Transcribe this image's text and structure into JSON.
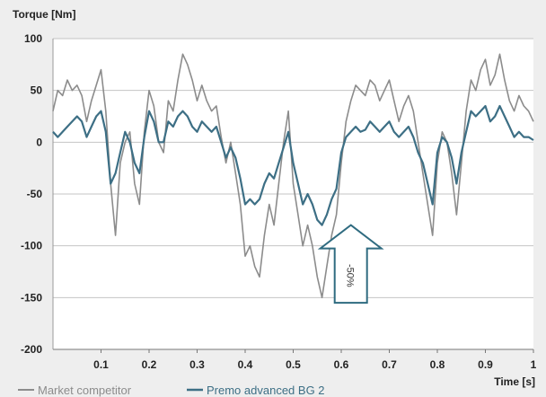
{
  "chart_data": {
    "type": "line",
    "ylabel": "Torque [Nm]",
    "xlabel": "Time [s]",
    "xlim": [
      0,
      1
    ],
    "ylim": [
      -200,
      100
    ],
    "x_ticks": [
      0.1,
      0.2,
      0.3,
      0.4,
      0.5,
      0.6,
      0.7,
      0.8,
      0.9,
      1
    ],
    "x_tick_labels": [
      "0.1",
      "0.2",
      "0.3",
      "0.4",
      "0.5",
      "0.6",
      "0.7",
      "0.8",
      "0.9",
      "1"
    ],
    "y_ticks": [
      100,
      50,
      0,
      -50,
      -100,
      -150,
      -200
    ],
    "y_tick_labels": [
      "100",
      "50",
      "0",
      "-50",
      "-100",
      "-150",
      "-200"
    ],
    "grid": "horizontal",
    "legend_position": "bottom-left",
    "annotation": {
      "text": "-50%",
      "x": 0.62,
      "y_top": -80,
      "y_bottom": -155
    },
    "series": [
      {
        "name": "Market competitor",
        "color": "#8c8c8c",
        "x": [
          0,
          0.01,
          0.02,
          0.03,
          0.04,
          0.05,
          0.06,
          0.07,
          0.08,
          0.09,
          0.1,
          0.11,
          0.12,
          0.13,
          0.14,
          0.15,
          0.16,
          0.17,
          0.18,
          0.19,
          0.2,
          0.21,
          0.22,
          0.23,
          0.24,
          0.25,
          0.26,
          0.27,
          0.28,
          0.29,
          0.3,
          0.31,
          0.32,
          0.33,
          0.34,
          0.35,
          0.36,
          0.37,
          0.38,
          0.39,
          0.4,
          0.41,
          0.42,
          0.43,
          0.44,
          0.45,
          0.46,
          0.47,
          0.48,
          0.49,
          0.5,
          0.51,
          0.52,
          0.53,
          0.54,
          0.55,
          0.56,
          0.57,
          0.58,
          0.59,
          0.6,
          0.61,
          0.62,
          0.63,
          0.64,
          0.65,
          0.66,
          0.67,
          0.68,
          0.69,
          0.7,
          0.71,
          0.72,
          0.73,
          0.74,
          0.75,
          0.76,
          0.77,
          0.78,
          0.79,
          0.8,
          0.81,
          0.82,
          0.83,
          0.84,
          0.85,
          0.86,
          0.87,
          0.88,
          0.89,
          0.9,
          0.91,
          0.92,
          0.93,
          0.94,
          0.95,
          0.96,
          0.97,
          0.98,
          0.99,
          1
        ],
        "values": [
          30,
          50,
          45,
          60,
          50,
          55,
          45,
          20,
          40,
          55,
          70,
          30,
          -40,
          -90,
          -20,
          0,
          10,
          -40,
          -60,
          10,
          50,
          35,
          0,
          -10,
          40,
          30,
          60,
          85,
          75,
          60,
          40,
          55,
          40,
          30,
          35,
          5,
          -20,
          0,
          -30,
          -60,
          -110,
          -100,
          -120,
          -130,
          -90,
          -60,
          -80,
          -40,
          0,
          30,
          -40,
          -70,
          -100,
          -80,
          -100,
          -130,
          -150,
          -120,
          -90,
          -70,
          -20,
          20,
          40,
          55,
          50,
          45,
          60,
          55,
          40,
          50,
          60,
          40,
          20,
          35,
          45,
          30,
          0,
          -30,
          -60,
          -90,
          -20,
          10,
          0,
          -30,
          -70,
          -20,
          30,
          60,
          50,
          70,
          80,
          55,
          65,
          85,
          60,
          40,
          30,
          45,
          35,
          30,
          20
        ]
      },
      {
        "name": "Premo advanced BG 2",
        "color": "#3d6f85",
        "x": [
          0,
          0.01,
          0.02,
          0.03,
          0.04,
          0.05,
          0.06,
          0.07,
          0.08,
          0.09,
          0.1,
          0.11,
          0.12,
          0.13,
          0.14,
          0.15,
          0.16,
          0.17,
          0.18,
          0.19,
          0.2,
          0.21,
          0.22,
          0.23,
          0.24,
          0.25,
          0.26,
          0.27,
          0.28,
          0.29,
          0.3,
          0.31,
          0.32,
          0.33,
          0.34,
          0.35,
          0.36,
          0.37,
          0.38,
          0.39,
          0.4,
          0.41,
          0.42,
          0.43,
          0.44,
          0.45,
          0.46,
          0.47,
          0.48,
          0.49,
          0.5,
          0.51,
          0.52,
          0.53,
          0.54,
          0.55,
          0.56,
          0.57,
          0.58,
          0.59,
          0.6,
          0.61,
          0.62,
          0.63,
          0.64,
          0.65,
          0.66,
          0.67,
          0.68,
          0.69,
          0.7,
          0.71,
          0.72,
          0.73,
          0.74,
          0.75,
          0.76,
          0.77,
          0.78,
          0.79,
          0.8,
          0.81,
          0.82,
          0.83,
          0.84,
          0.85,
          0.86,
          0.87,
          0.88,
          0.89,
          0.9,
          0.91,
          0.92,
          0.93,
          0.94,
          0.95,
          0.96,
          0.97,
          0.98,
          0.99,
          1
        ],
        "values": [
          10,
          5,
          10,
          15,
          20,
          25,
          20,
          5,
          15,
          25,
          30,
          10,
          -40,
          -30,
          -10,
          10,
          0,
          -20,
          -30,
          5,
          30,
          20,
          0,
          0,
          20,
          15,
          25,
          30,
          25,
          15,
          10,
          20,
          15,
          10,
          15,
          0,
          -15,
          -5,
          -15,
          -35,
          -60,
          -55,
          -60,
          -55,
          -40,
          -30,
          -35,
          -20,
          -5,
          10,
          -20,
          -40,
          -60,
          -50,
          -60,
          -75,
          -80,
          -70,
          -55,
          -45,
          -10,
          5,
          10,
          15,
          10,
          12,
          20,
          15,
          10,
          15,
          20,
          10,
          5,
          10,
          15,
          5,
          -10,
          -20,
          -40,
          -60,
          -10,
          5,
          0,
          -15,
          -40,
          -10,
          10,
          30,
          25,
          30,
          35,
          20,
          25,
          35,
          25,
          15,
          5,
          10,
          5,
          5,
          2
        ]
      }
    ]
  }
}
